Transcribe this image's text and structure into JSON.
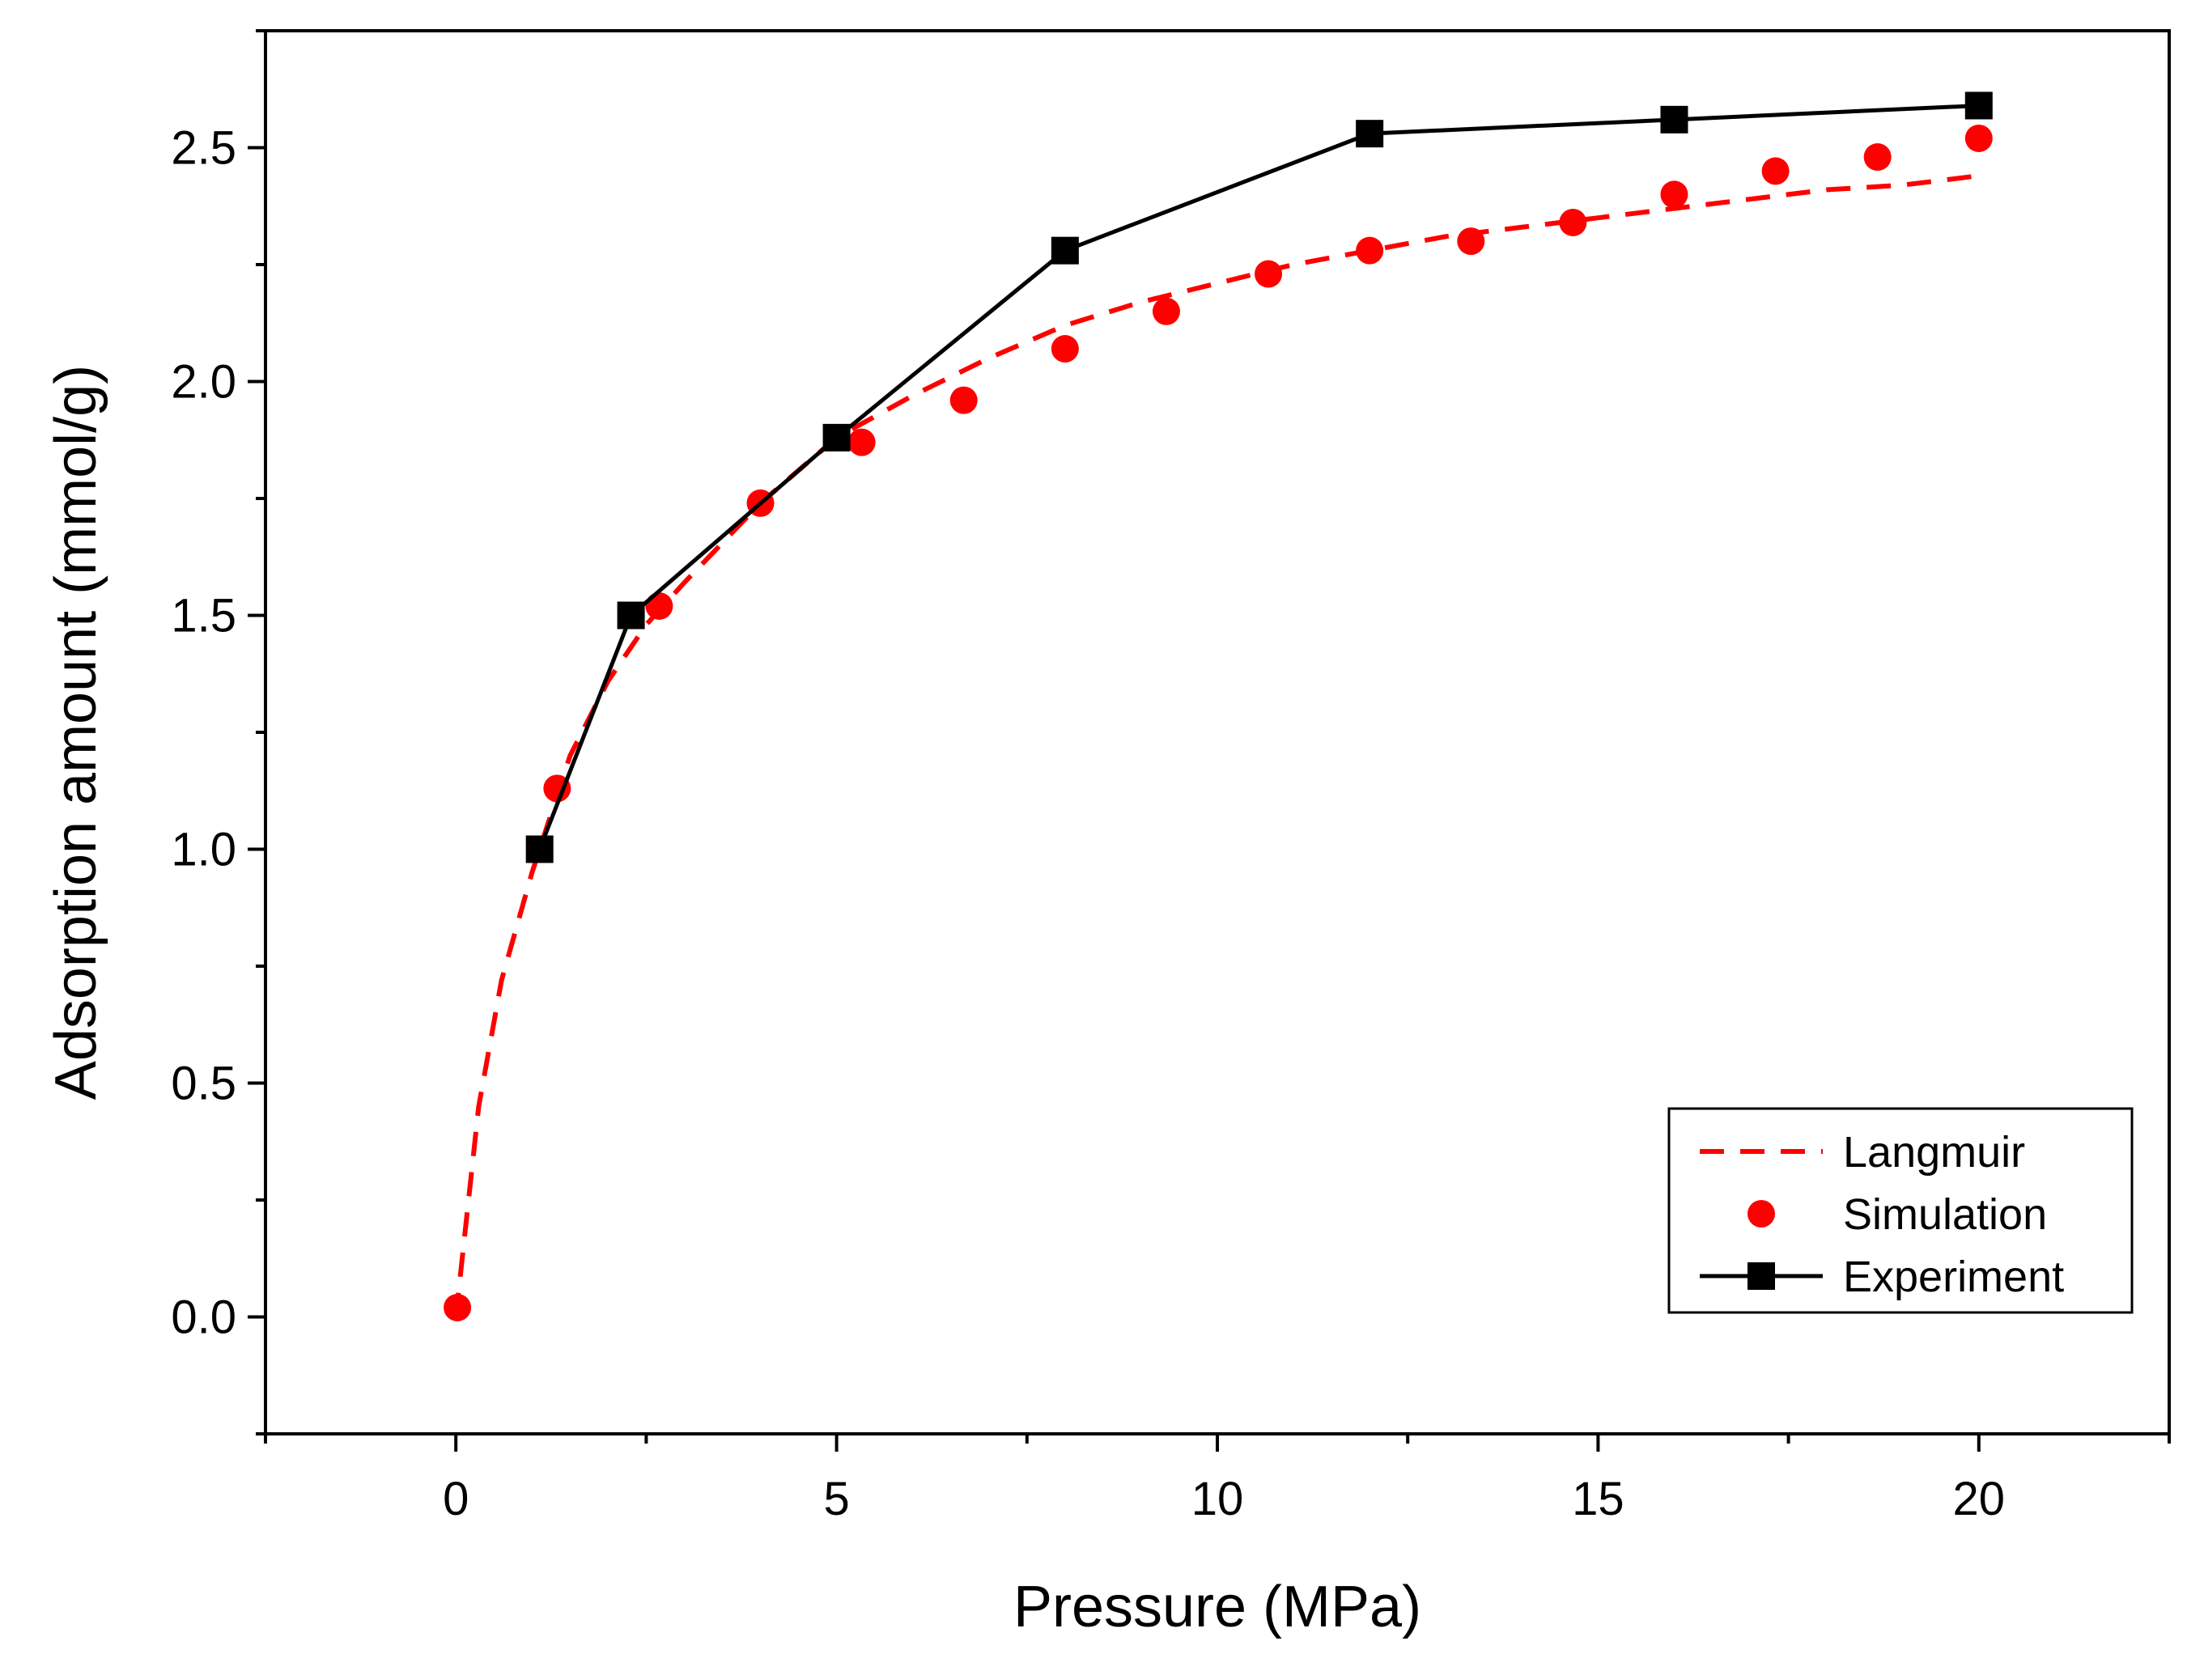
{
  "chart_data": {
    "type": "line",
    "title": "",
    "xlabel": "Pressure (MPa)",
    "ylabel": "Adsorption amount (mmol/g)",
    "xlim": [
      -2.5,
      22.5
    ],
    "ylim": [
      -0.25,
      2.75
    ],
    "xticks": [
      0,
      5,
      10,
      15,
      20
    ],
    "xtick_labels": [
      "0",
      "5",
      "10",
      "15",
      "20"
    ],
    "yticks": [
      0.0,
      0.5,
      1.0,
      1.5,
      2.0,
      2.5
    ],
    "ytick_labels": [
      "0.0",
      "0.5",
      "1.0",
      "1.5",
      "2.0",
      "2.5"
    ],
    "legend_position": "bottom-right",
    "colors": {
      "langmuir": "#ff0000",
      "simulation": "#ff0000",
      "experiment": "#000000"
    },
    "series": [
      {
        "name": "Langmuir",
        "style": "dashed-line",
        "x": [
          0,
          0.3,
          0.6,
          1.0,
          1.5,
          2.0,
          2.5,
          3.0,
          4.0,
          5.0,
          6.0,
          7.0,
          8.0,
          9.0,
          10.0,
          11.0,
          12.0,
          13.0,
          14.0,
          15.0,
          16.0,
          17.0,
          18.0,
          19.0,
          20.0
        ],
        "y": [
          0.0,
          0.45,
          0.72,
          0.95,
          1.2,
          1.36,
          1.48,
          1.57,
          1.74,
          1.88,
          1.97,
          2.05,
          2.12,
          2.17,
          2.21,
          2.25,
          2.28,
          2.31,
          2.33,
          2.35,
          2.37,
          2.39,
          2.41,
          2.42,
          2.44
        ]
      },
      {
        "name": "Simulation",
        "style": "markers-circle",
        "x": [
          0.02,
          1.33,
          2.67,
          4.0,
          5.33,
          6.67,
          8.0,
          9.33,
          10.67,
          12.0,
          13.33,
          14.67,
          16.0,
          17.33,
          18.67,
          20.0
        ],
        "y": [
          0.02,
          1.13,
          1.52,
          1.74,
          1.87,
          1.96,
          2.07,
          2.15,
          2.23,
          2.28,
          2.3,
          2.34,
          2.4,
          2.45,
          2.48,
          2.52
        ]
      },
      {
        "name": "Experiment",
        "style": "line-square",
        "x": [
          1.1,
          2.3,
          5.0,
          8.0,
          12.0,
          16.0,
          20.0
        ],
        "y": [
          1.0,
          1.5,
          1.88,
          2.28,
          2.53,
          2.56,
          2.59
        ]
      }
    ]
  }
}
